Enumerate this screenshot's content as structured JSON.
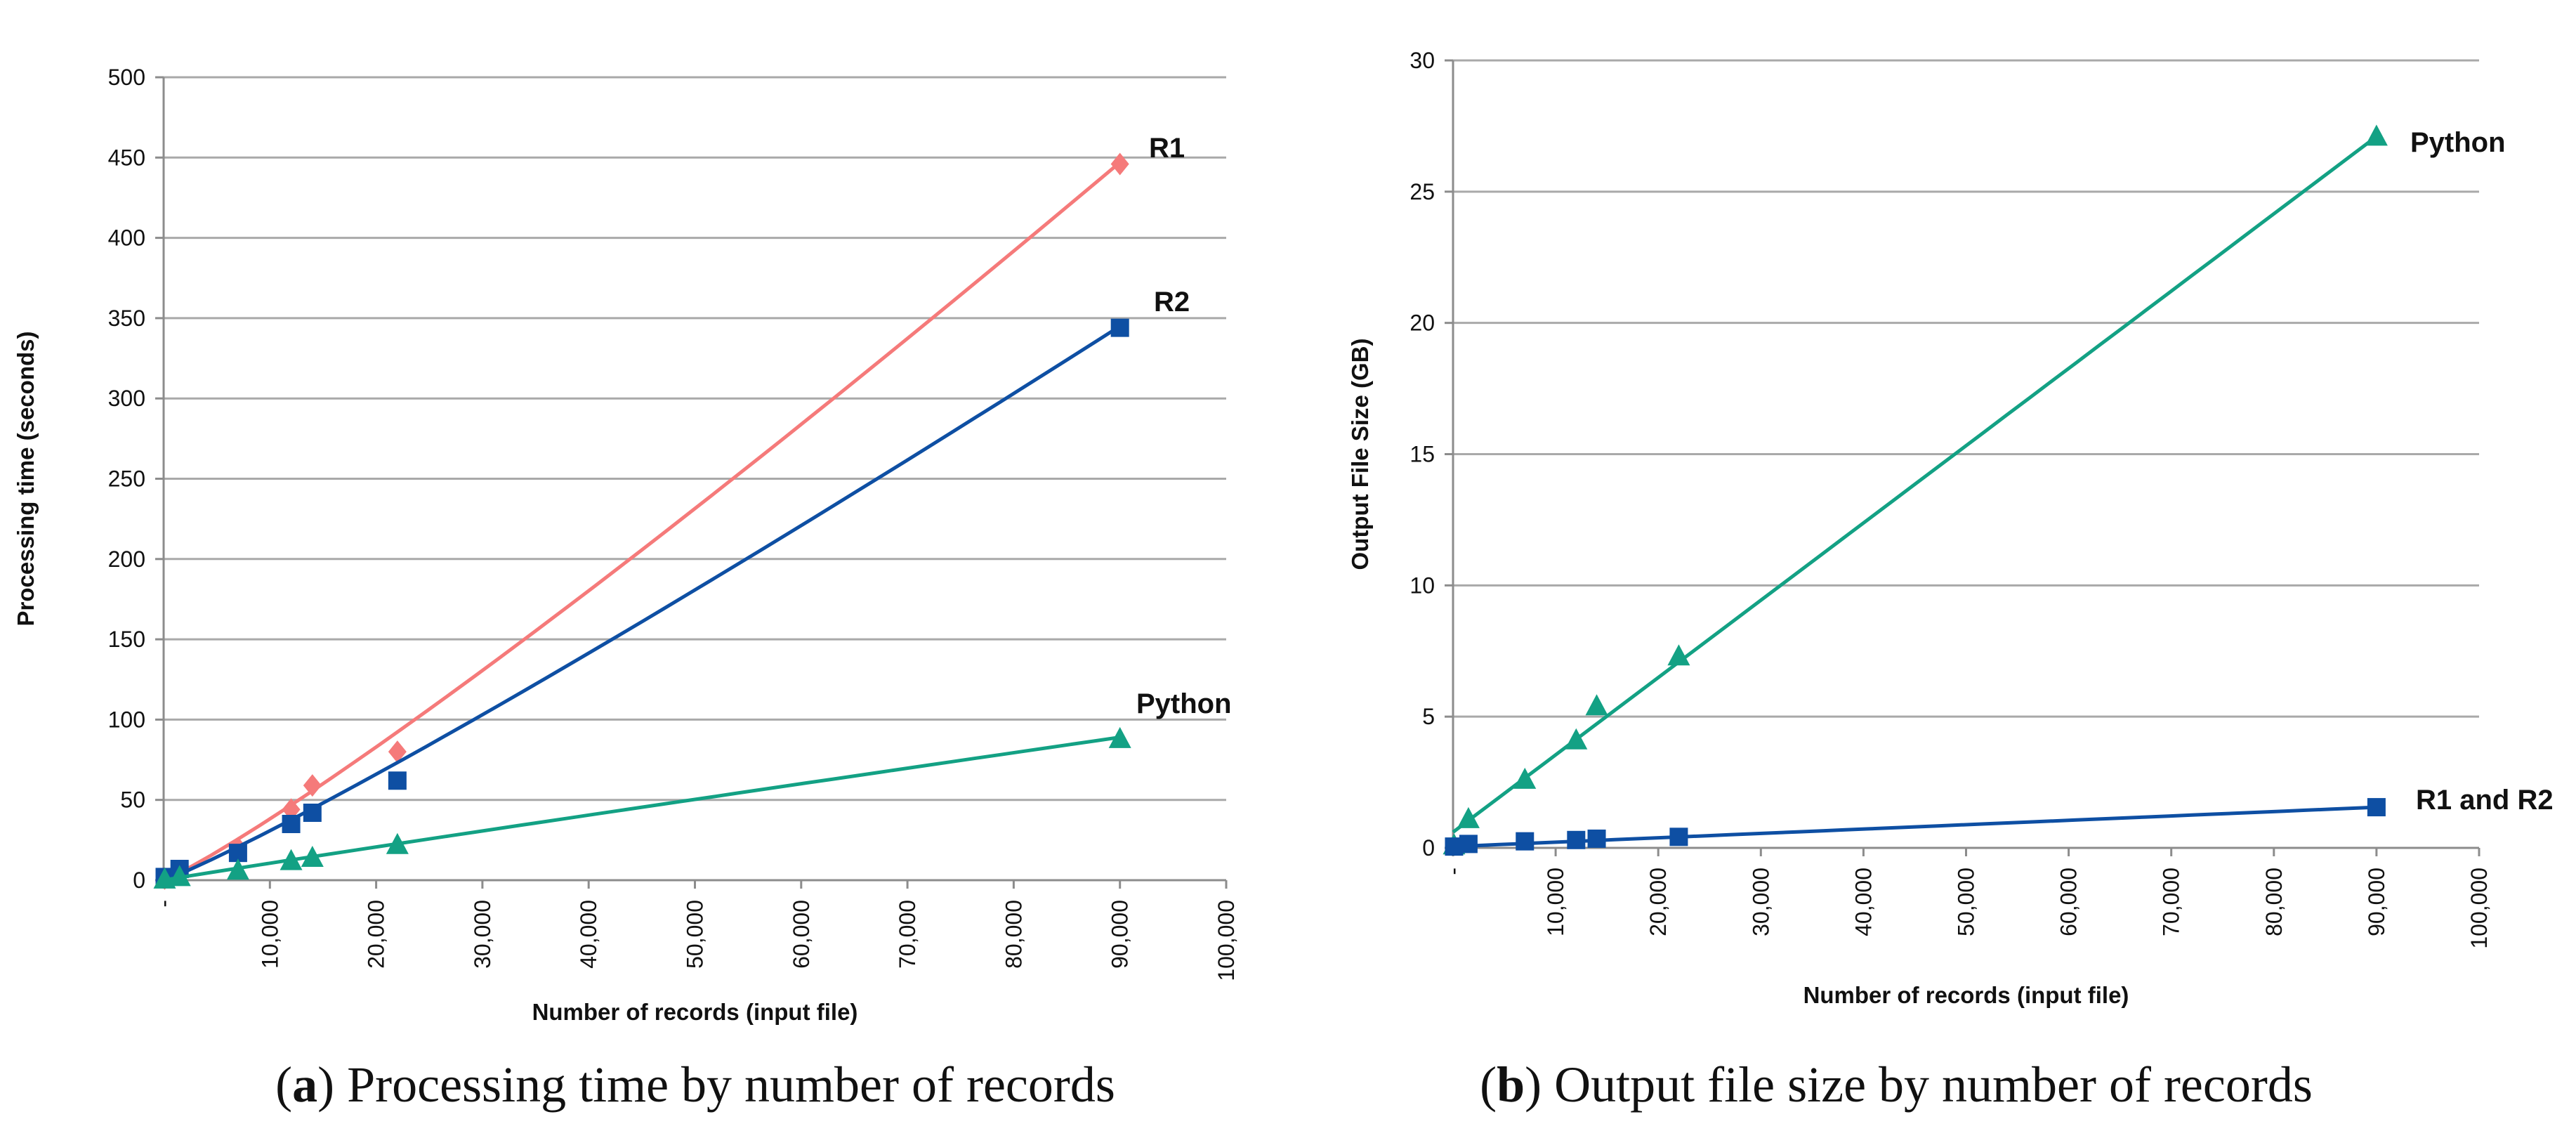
{
  "colors": {
    "R1": "#f57a7a",
    "R2": "#0e4fa3",
    "Python": "#13a184",
    "grid": "#a9a9a9",
    "text": "#111111"
  },
  "chart_data": [
    {
      "id": "a",
      "type": "scatter",
      "title": "Processing time by number of records",
      "caption_letter": "a",
      "xlabel": "Number of records (input file)",
      "ylabel": "Processing time (seconds)",
      "xlim": [
        0,
        100000
      ],
      "ylim": [
        0,
        500
      ],
      "xticks": [
        0,
        10000,
        20000,
        30000,
        40000,
        50000,
        60000,
        70000,
        80000,
        90000,
        100000
      ],
      "xtick_labels": [
        "-",
        "10,000",
        "20,000",
        "30,000",
        "40,000",
        "50,000",
        "60,000",
        "70,000",
        "80,000",
        "90,000",
        "100,000"
      ],
      "yticks": [
        0,
        50,
        100,
        150,
        200,
        250,
        300,
        350,
        400,
        450,
        500
      ],
      "ytick_labels": [
        "0",
        "50",
        "100",
        "150",
        "200",
        "250",
        "300",
        "350",
        "400",
        "450",
        "500"
      ],
      "grid": true,
      "series": [
        {
          "name": "R1",
          "label": "R1",
          "marker": "diamond",
          "color": "#f57a7a",
          "x": [
            100,
            1500,
            7000,
            12000,
            14000,
            22000,
            90000
          ],
          "y": [
            1,
            5,
            20,
            44,
            59,
            80,
            446
          ],
          "trend": {
            "x": [
              0,
              90000
            ],
            "y": [
              0,
              447
            ],
            "curve": 1.12
          }
        },
        {
          "name": "R2",
          "label": "R2",
          "marker": "square",
          "color": "#0e4fa3",
          "x": [
            100,
            1500,
            7000,
            12000,
            14000,
            22000,
            90000
          ],
          "y": [
            2,
            7,
            17,
            35,
            42,
            62,
            344
          ],
          "trend": {
            "x": [
              0,
              90000
            ],
            "y": [
              0,
              345
            ],
            "curve": 1.1
          }
        },
        {
          "name": "Python",
          "label": "Python",
          "marker": "triangle",
          "color": "#13a184",
          "x": [
            100,
            1500,
            7000,
            12000,
            14000,
            22000,
            90000
          ],
          "y": [
            0.5,
            2,
            6,
            12,
            14,
            22,
            88
          ],
          "trend": {
            "x": [
              0,
              90000
            ],
            "y": [
              0,
              89
            ],
            "curve": 0.97
          }
        }
      ]
    },
    {
      "id": "b",
      "type": "scatter",
      "title": "Output file size by number of records",
      "caption_letter": "b",
      "xlabel": "Number of records (input file)",
      "ylabel": "Output File Size (GB)",
      "xlim": [
        0,
        100000
      ],
      "ylim": [
        0,
        30
      ],
      "xticks": [
        0,
        10000,
        20000,
        30000,
        40000,
        50000,
        60000,
        70000,
        80000,
        90000,
        100000
      ],
      "xtick_labels": [
        "-",
        "10,000",
        "20,000",
        "30,000",
        "40,000",
        "50,000",
        "60,000",
        "70,000",
        "80,000",
        "90,000",
        "100,000"
      ],
      "yticks": [
        0,
        5,
        10,
        15,
        20,
        25,
        30
      ],
      "ytick_labels": [
        "0",
        "5",
        "10",
        "15",
        "20",
        "25",
        "30"
      ],
      "grid": true,
      "series": [
        {
          "name": "Python",
          "label": "Python",
          "marker": "triangle",
          "color": "#13a184",
          "x": [
            100,
            1500,
            7000,
            12000,
            14000,
            22000,
            90000
          ],
          "y": [
            0.1,
            1.1,
            2.6,
            4.1,
            5.4,
            7.3,
            27.1
          ],
          "trend": {
            "x": [
              0,
              90000
            ],
            "y": [
              0.6,
              27.1
            ],
            "curve": 1.0
          }
        },
        {
          "name": "R1 and R2",
          "label": "R1 and R2",
          "marker": "square",
          "color": "#0e4fa3",
          "x": [
            100,
            1500,
            7000,
            12000,
            14000,
            22000,
            90000
          ],
          "y": [
            0.05,
            0.15,
            0.25,
            0.3,
            0.35,
            0.42,
            1.55
          ],
          "trend": {
            "x": [
              0,
              90000
            ],
            "y": [
              0.05,
              1.55
            ],
            "curve": 1.0
          }
        }
      ]
    }
  ]
}
